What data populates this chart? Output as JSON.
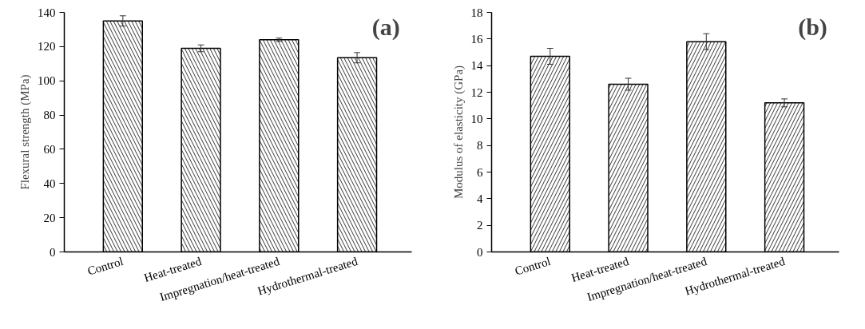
{
  "chart_data": [
    {
      "type": "bar",
      "ylabel": "Flexural strength (MPa)",
      "annotations": [
        "(a)"
      ],
      "categories": [
        "Control",
        "Heat-treated",
        "Impregnation/heat-treated",
        "Hydrothermal-treated"
      ],
      "values": [
        135,
        119,
        124,
        113.5
      ],
      "errors": [
        3,
        2,
        1,
        3
      ],
      "color": "#ffffff",
      "ylim": [
        0,
        140
      ],
      "yticks": [
        0,
        20,
        40,
        60,
        80,
        100,
        120,
        140
      ],
      "grid": false
    },
    {
      "type": "bar",
      "ylabel": "Modulus of elasticity (GPa)",
      "annotations": [
        "(b)"
      ],
      "categories": [
        "Control",
        "Heat-treated",
        "Impregnation/heat-treated",
        "Hydrothermal-treated"
      ],
      "values": [
        14.7,
        12.6,
        15.8,
        11.2
      ],
      "errors": [
        0.6,
        0.45,
        0.6,
        0.3
      ],
      "color": "#ffffff",
      "ylim": [
        0,
        18
      ],
      "yticks": [
        0,
        2,
        4,
        6,
        8,
        10,
        12,
        14,
        16,
        18
      ],
      "grid": false
    }
  ]
}
